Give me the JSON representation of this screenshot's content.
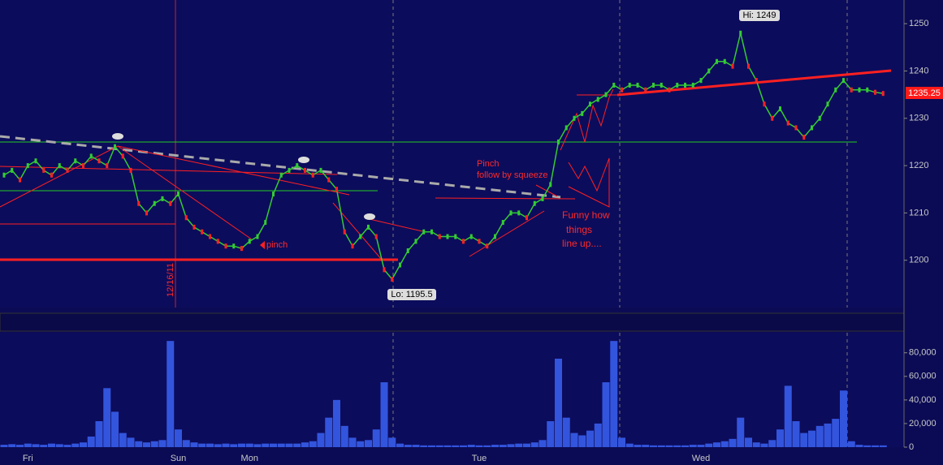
{
  "chart_data": [
    {
      "type": "price",
      "categories": [
        null,
        null,
        null,
        "Fri",
        null,
        null,
        null,
        null,
        null,
        null,
        null,
        null,
        null,
        null,
        null,
        null,
        null,
        null,
        null,
        null,
        null,
        null,
        "Sun",
        null,
        null,
        null,
        null,
        null,
        null,
        null,
        null,
        "Mon",
        null,
        null,
        null,
        null,
        null,
        null,
        null,
        null,
        null,
        null,
        null,
        null,
        null,
        null,
        null,
        null,
        null,
        null,
        null,
        null,
        null,
        null,
        null,
        null,
        null,
        null,
        null,
        null,
        "Tue",
        null,
        null,
        null,
        null,
        null,
        null,
        null,
        null,
        null,
        null,
        null,
        null,
        null,
        null,
        null,
        null,
        null,
        null,
        null,
        null,
        null,
        null,
        null,
        null,
        null,
        null,
        null,
        "Wed",
        null,
        null,
        null,
        null,
        null,
        null,
        null,
        null,
        null,
        null,
        null,
        null,
        null,
        null,
        null,
        null,
        null,
        null,
        null,
        null,
        null,
        null,
        null
      ],
      "series": [
        {
          "name": "Price",
          "color": "#33cc33",
          "down_color": "#ff2222",
          "values": [
            1218,
            1219,
            1217,
            1220,
            1221,
            1219,
            1218,
            1220,
            1219,
            1221,
            1220,
            1222,
            1221,
            1220,
            1224,
            1222,
            1219,
            1212,
            1210,
            1212,
            1213,
            1212,
            1214,
            1209,
            1207,
            1206,
            1205,
            1204,
            1203,
            1203,
            1202.5,
            1204,
            1205,
            1208,
            1214,
            1218,
            1219,
            1220,
            1219,
            1218,
            1219,
            1217,
            1215,
            1206,
            1203,
            1205,
            1207,
            1205,
            1198,
            1196,
            1199,
            1202,
            1204,
            1206,
            1206,
            1205,
            1205,
            1205,
            1204,
            1205,
            1204,
            1203,
            1205,
            1208,
            1210,
            1210,
            1209,
            1212,
            1213,
            1216,
            1225,
            1228,
            1230,
            1231,
            1233,
            1234,
            1235,
            1237,
            1236,
            1237,
            1237,
            1236,
            1237,
            1237,
            1236,
            1237,
            1237,
            1237,
            1238,
            1240,
            1242,
            1242,
            1241,
            1248,
            1241,
            1238,
            1233,
            1230,
            1232,
            1229,
            1228,
            1226,
            1228,
            1230,
            1233,
            1236,
            1238,
            1236,
            1236,
            1236,
            1235.5,
            1235.25
          ]
        }
      ],
      "ylim": [
        1190,
        1255
      ],
      "yticks": [
        1200,
        1210,
        1220,
        1230,
        1240,
        1250
      ],
      "annotations": {
        "high": "Hi: 1249",
        "low": "Lo: 1195.5",
        "last": "1235.25",
        "date": "12/16/11",
        "pinch1": "pinch",
        "pinch2a": "Pinch",
        "pinch2b": "follow by squeeze",
        "funny1": "Funny how",
        "funny2": "things",
        "funny3": "line up...."
      }
    },
    {
      "type": "volume",
      "series": [
        {
          "name": "Volume",
          "color": "#3355dd",
          "values": [
            2000,
            2500,
            2000,
            3000,
            2500,
            2000,
            3000,
            2500,
            2000,
            3000,
            4000,
            9000,
            22000,
            50000,
            30000,
            12000,
            8000,
            5000,
            4000,
            5000,
            6000,
            90000,
            15000,
            6000,
            4000,
            3000,
            3000,
            2500,
            3000,
            2500,
            3000,
            3000,
            2500,
            3000,
            3000,
            3000,
            3000,
            3000,
            4000,
            5000,
            12000,
            25000,
            40000,
            18000,
            8000,
            5000,
            6000,
            15000,
            55000,
            8000,
            3000,
            2000,
            2000,
            1500,
            1500,
            1500,
            1500,
            1500,
            1500,
            2000,
            1500,
            1500,
            2000,
            2000,
            2500,
            3000,
            3000,
            4000,
            6000,
            22000,
            75000,
            25000,
            12000,
            10000,
            14000,
            20000,
            55000,
            90000,
            8000,
            3000,
            2000,
            2000,
            1500,
            1500,
            1500,
            1500,
            1500,
            2000,
            2000,
            3000,
            4000,
            5000,
            7000,
            25000,
            8000,
            4000,
            3000,
            6000,
            15000,
            52000,
            22000,
            12000,
            14000,
            18000,
            20000,
            24000,
            48000,
            5000,
            2000,
            1500,
            1500,
            1500
          ]
        }
      ],
      "ylim": [
        0,
        97000
      ],
      "yticks": [
        0,
        {
          "value": 20000,
          "label": "20,000"
        },
        {
          "value": 40000,
          "label": "40,000"
        },
        {
          "value": 60000,
          "label": "60,000"
        },
        {
          "value": 80000,
          "label": "80,000"
        }
      ]
    }
  ]
}
